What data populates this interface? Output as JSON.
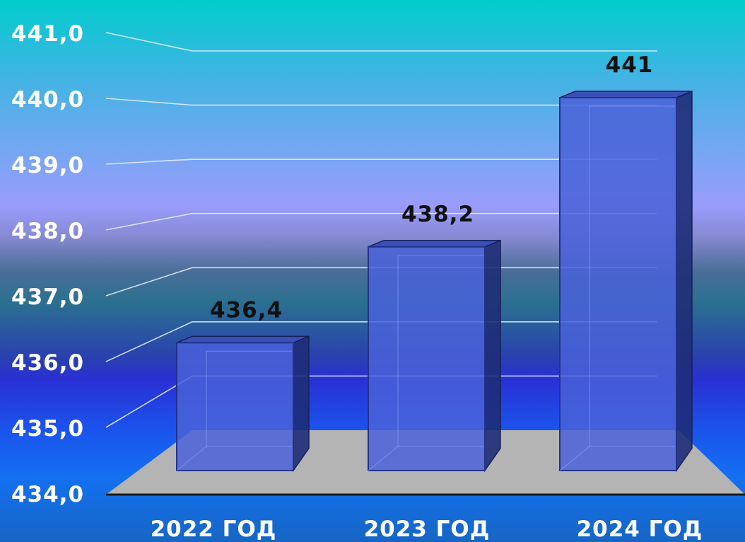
{
  "chart_data": {
    "type": "bar",
    "categories": [
      "2022 ГОД",
      "2023 ГОД",
      "2024 ГОД"
    ],
    "values": [
      436.4,
      438.2,
      441
    ],
    "data_labels": [
      "436,4",
      "438,2",
      "441"
    ],
    "ylim": [
      434,
      441
    ],
    "yticks": [
      "434,0",
      "435,0",
      "436,0",
      "437,0",
      "438,0",
      "439,0",
      "440,0",
      "441,0"
    ],
    "grid": true,
    "bar_style": "3d",
    "colors": {
      "bar_front": "#4a62d8",
      "bar_side": "#1e2e78",
      "floor": "#b4b4b4",
      "grid": "#e8f0ff"
    }
  }
}
